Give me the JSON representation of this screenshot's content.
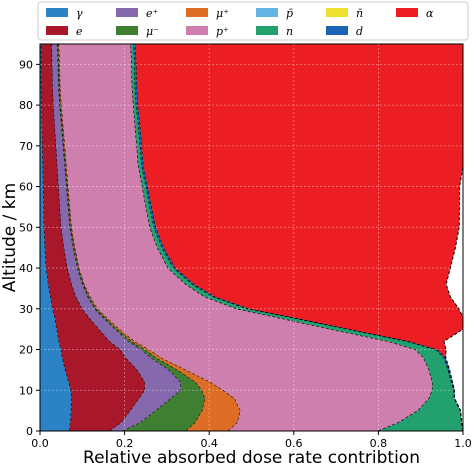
{
  "chart_data": {
    "type": "area",
    "title": "",
    "xlabel": "Relative absorbed dose rate contribtion",
    "ylabel": "Altitude / km",
    "xlim": [
      0,
      1
    ],
    "ylim": [
      0,
      95
    ],
    "xticks": [
      "0.0",
      "0.2",
      "0.4",
      "0.6",
      "0.8",
      "1.0"
    ],
    "yticks": [
      "0",
      "10",
      "20",
      "30",
      "40",
      "50",
      "60",
      "70",
      "80",
      "90"
    ],
    "grid": true,
    "legend_position": "top",
    "altitudes": [
      0,
      2,
      5,
      8,
      10,
      12,
      15,
      18,
      20,
      22,
      25,
      28,
      30,
      33,
      36,
      40,
      45,
      50,
      55,
      60,
      65,
      70,
      75,
      80,
      85,
      90,
      95
    ],
    "series": [
      {
        "name": "γ",
        "color": "#2b83c6",
        "values": [
          0.07,
          0.072,
          0.074,
          0.075,
          0.073,
          0.068,
          0.06,
          0.053,
          0.05,
          0.045,
          0.04,
          0.035,
          0.03,
          0.025,
          0.02,
          0.015,
          0.012,
          0.01,
          0.009,
          0.008,
          0.007,
          0.006,
          0.005,
          0.004,
          0.003,
          0.003,
          0.003
        ]
      },
      {
        "name": "e",
        "color": "#a8182a",
        "values": [
          0.095,
          0.12,
          0.14,
          0.16,
          0.175,
          0.18,
          0.17,
          0.15,
          0.14,
          0.12,
          0.1,
          0.08,
          0.07,
          0.06,
          0.055,
          0.05,
          0.045,
          0.04,
          0.038,
          0.036,
          0.034,
          0.032,
          0.03,
          0.028,
          0.027,
          0.026,
          0.025
        ]
      },
      {
        "name": "e⁺",
        "color": "#8668ad",
        "values": [
          0.03,
          0.045,
          0.06,
          0.075,
          0.085,
          0.085,
          0.075,
          0.06,
          0.05,
          0.045,
          0.038,
          0.033,
          0.03,
          0.028,
          0.026,
          0.024,
          0.022,
          0.021,
          0.02,
          0.019,
          0.018,
          0.017,
          0.016,
          0.015,
          0.014,
          0.014,
          0.013
        ]
      },
      {
        "name": "μ⁻",
        "color": "#3f7f32",
        "values": [
          0.15,
          0.13,
          0.11,
          0.08,
          0.05,
          0.035,
          0.02,
          0.012,
          0.009,
          0.007,
          0.005,
          0.004,
          0.003,
          0.003,
          0.002,
          0.002,
          0.002,
          0.002,
          0.002,
          0.002,
          0.002,
          0.002,
          0.002,
          0.002,
          0.002,
          0.002,
          0.002
        ]
      },
      {
        "name": "μ⁺",
        "color": "#dd6d24",
        "values": [
          0.1,
          0.1,
          0.09,
          0.07,
          0.05,
          0.035,
          0.02,
          0.012,
          0.009,
          0.007,
          0.005,
          0.004,
          0.003,
          0.003,
          0.002,
          0.002,
          0.002,
          0.002,
          0.002,
          0.002,
          0.002,
          0.002,
          0.002,
          0.002,
          0.002,
          0.002,
          0.002
        ]
      },
      {
        "name": "p⁺",
        "color": "#cf7fae",
        "values": [
          0.355,
          0.38,
          0.42,
          0.46,
          0.495,
          0.525,
          0.575,
          0.62,
          0.63,
          0.6,
          0.5,
          0.4,
          0.33,
          0.27,
          0.24,
          0.21,
          0.195,
          0.185,
          0.18,
          0.175,
          0.17,
          0.17,
          0.17,
          0.17,
          0.17,
          0.17,
          0.17
        ]
      },
      {
        "name": "p̄",
        "color": "#63b4e4",
        "values": [
          0.0,
          0.0,
          0.0,
          0.0,
          0.0,
          0.0,
          0.0,
          0.0,
          0.0,
          0.0,
          0.0,
          0.0,
          0.0,
          0.0,
          0.0,
          0.0,
          0.0,
          0.0,
          0.0,
          0.0,
          0.0,
          0.0,
          0.0,
          0.0,
          0.0,
          0.0,
          0.0
        ]
      },
      {
        "name": "n",
        "color": "#22a06e",
        "values": [
          0.2,
          0.15,
          0.1,
          0.06,
          0.05,
          0.045,
          0.045,
          0.048,
          0.048,
          0.045,
          0.04,
          0.032,
          0.025,
          0.02,
          0.016,
          0.013,
          0.011,
          0.01,
          0.009,
          0.009,
          0.008,
          0.008,
          0.008,
          0.007,
          0.007,
          0.007,
          0.007
        ]
      },
      {
        "name": "n̄",
        "color": "#eee132",
        "values": [
          0.0,
          0.0,
          0.0,
          0.0,
          0.0,
          0.0,
          0.0,
          0.0,
          0.0,
          0.0,
          0.0,
          0.0,
          0.0,
          0.0,
          0.0,
          0.0,
          0.0,
          0.0,
          0.0,
          0.0,
          0.0,
          0.0,
          0.0,
          0.0,
          0.0,
          0.0,
          0.0
        ]
      },
      {
        "name": "d",
        "color": "#1a64b5",
        "values": [
          0.0,
          0.0,
          0.0,
          0.0,
          0.002,
          0.002,
          0.003,
          0.004,
          0.004,
          0.005,
          0.005,
          0.005,
          0.005,
          0.005,
          0.004,
          0.004,
          0.004,
          0.004,
          0.004,
          0.004,
          0.004,
          0.004,
          0.004,
          0.004,
          0.004,
          0.004,
          0.004
        ]
      },
      {
        "name": "α",
        "color": "#ec1e24",
        "values": [
          0.0,
          0.0,
          0.0,
          0.0,
          0.0,
          0.0,
          0.0,
          0.0,
          0.02,
          0.081,
          0.267,
          0.407,
          0.494,
          0.556,
          0.595,
          0.65,
          0.689,
          0.717,
          0.728,
          0.737,
          0.755,
          0.759,
          0.763,
          0.768,
          0.773,
          0.774,
          0.774
        ]
      }
    ]
  }
}
